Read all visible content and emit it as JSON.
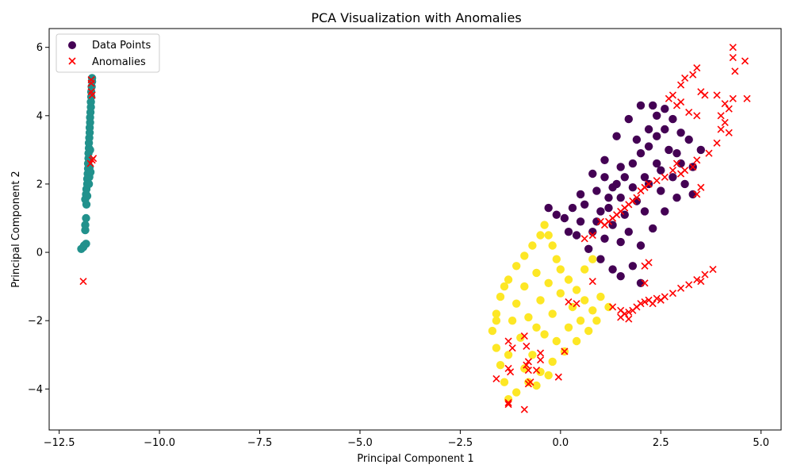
{
  "chart_data": {
    "type": "scatter",
    "title": "PCA Visualization with Anomalies",
    "xlabel": "Principal Component 1",
    "ylabel": "Principal Component 2",
    "xlim": [
      -12.75,
      5.5
    ],
    "ylim": [
      -5.2,
      6.55
    ],
    "x_ticks": [
      -12.5,
      -10.0,
      -7.5,
      -5.0,
      -2.5,
      0.0,
      2.5,
      5.0
    ],
    "x_tick_labels": [
      "−12.5",
      "−10.0",
      "−7.5",
      "−5.0",
      "−2.5",
      "0.0",
      "2.5",
      "5.0"
    ],
    "y_ticks": [
      -4,
      -2,
      0,
      2,
      4,
      6
    ],
    "y_tick_labels": [
      "−4",
      "−2",
      "0",
      "2",
      "4",
      "6"
    ],
    "grid": false,
    "legend": {
      "position": "top-left",
      "entries": [
        {
          "label": "Data Points",
          "marker": "circle",
          "color": "#440154"
        },
        {
          "label": "Anomalies",
          "marker": "x",
          "color": "#ff0000"
        }
      ]
    },
    "colors": {
      "cluster_a": "#440154",
      "cluster_b": "#21918c",
      "cluster_c": "#fde725",
      "anomaly": "#ff0000"
    },
    "series": [
      {
        "name": "cluster_a",
        "color": "#440154",
        "points": [
          [
            0.8,
            0.6
          ],
          [
            1.0,
            1.2
          ],
          [
            1.2,
            1.6
          ],
          [
            1.4,
            2.0
          ],
          [
            1.6,
            2.2
          ],
          [
            1.8,
            2.6
          ],
          [
            2.0,
            2.9
          ],
          [
            2.2,
            3.1
          ],
          [
            2.4,
            3.4
          ],
          [
            2.6,
            3.6
          ],
          [
            2.8,
            3.9
          ],
          [
            2.3,
            4.3
          ],
          [
            2.0,
            4.3
          ],
          [
            1.7,
            3.9
          ],
          [
            1.4,
            3.4
          ],
          [
            1.1,
            2.7
          ],
          [
            0.8,
            2.3
          ],
          [
            0.5,
            1.7
          ],
          [
            0.3,
            1.3
          ],
          [
            0.1,
            1.0
          ],
          [
            -0.1,
            1.1
          ],
          [
            -0.3,
            1.3
          ],
          [
            0.4,
            0.5
          ],
          [
            0.7,
            0.1
          ],
          [
            1.0,
            -0.2
          ],
          [
            1.3,
            -0.5
          ],
          [
            1.5,
            -0.7
          ],
          [
            1.8,
            -0.4
          ],
          [
            2.0,
            0.2
          ],
          [
            2.3,
            0.7
          ],
          [
            2.6,
            1.2
          ],
          [
            2.9,
            1.6
          ],
          [
            3.1,
            2.0
          ],
          [
            3.3,
            2.5
          ],
          [
            3.5,
            3.0
          ],
          [
            3.2,
            3.3
          ],
          [
            2.9,
            2.9
          ],
          [
            2.5,
            2.4
          ],
          [
            2.2,
            2.0
          ],
          [
            1.9,
            1.5
          ],
          [
            1.6,
            1.1
          ],
          [
            1.3,
            0.8
          ],
          [
            1.1,
            0.4
          ],
          [
            0.9,
            0.9
          ],
          [
            1.2,
            1.3
          ],
          [
            1.5,
            1.6
          ],
          [
            1.8,
            1.9
          ],
          [
            2.1,
            2.2
          ],
          [
            2.4,
            2.6
          ],
          [
            2.7,
            3.0
          ],
          [
            2.1,
            1.2
          ],
          [
            1.7,
            0.6
          ],
          [
            2.5,
            1.8
          ],
          [
            2.8,
            2.2
          ],
          [
            3.0,
            2.6
          ],
          [
            1.5,
            2.5
          ],
          [
            1.9,
            3.3
          ],
          [
            2.2,
            3.6
          ],
          [
            1.3,
            1.9
          ],
          [
            0.6,
            1.4
          ],
          [
            0.9,
            1.8
          ],
          [
            1.1,
            2.2
          ],
          [
            3.0,
            3.5
          ],
          [
            2.6,
            4.2
          ],
          [
            2.4,
            4.0
          ],
          [
            0.2,
            0.6
          ],
          [
            0.5,
            0.9
          ],
          [
            1.5,
            0.3
          ],
          [
            2.0,
            -0.9
          ],
          [
            3.3,
            1.7
          ]
        ]
      },
      {
        "name": "cluster_b",
        "color": "#21918c",
        "points": [
          [
            -11.95,
            0.1
          ],
          [
            -11.9,
            0.15
          ],
          [
            -11.88,
            0.2
          ],
          [
            -11.83,
            0.25
          ],
          [
            -11.85,
            0.65
          ],
          [
            -11.85,
            0.8
          ],
          [
            -11.83,
            1.0
          ],
          [
            -11.82,
            1.4
          ],
          [
            -11.85,
            1.55
          ],
          [
            -11.83,
            1.7
          ],
          [
            -11.82,
            1.85
          ],
          [
            -11.8,
            2.0
          ],
          [
            -11.8,
            2.15
          ],
          [
            -11.79,
            2.3
          ],
          [
            -11.78,
            2.45
          ],
          [
            -11.78,
            2.6
          ],
          [
            -11.77,
            2.75
          ],
          [
            -11.77,
            2.9
          ],
          [
            -11.76,
            3.05
          ],
          [
            -11.76,
            3.2
          ],
          [
            -11.75,
            3.35
          ],
          [
            -11.74,
            3.5
          ],
          [
            -11.74,
            3.65
          ],
          [
            -11.73,
            3.8
          ],
          [
            -11.73,
            3.95
          ],
          [
            -11.72,
            4.1
          ],
          [
            -11.71,
            4.25
          ],
          [
            -11.71,
            4.4
          ],
          [
            -11.7,
            4.55
          ],
          [
            -11.7,
            4.7
          ],
          [
            -11.69,
            4.85
          ],
          [
            -11.68,
            5.0
          ],
          [
            -11.68,
            5.1
          ],
          [
            -11.75,
            2.2
          ],
          [
            -11.72,
            2.35
          ],
          [
            -11.8,
            1.65
          ],
          [
            -11.76,
            2.0
          ],
          [
            -11.74,
            2.5
          ],
          [
            -11.73,
            3.0
          ]
        ]
      },
      {
        "name": "cluster_c",
        "color": "#fde725",
        "points": [
          [
            -0.4,
            0.8
          ],
          [
            -0.3,
            0.5
          ],
          [
            -0.2,
            0.2
          ],
          [
            -0.1,
            -0.2
          ],
          [
            0.0,
            -0.5
          ],
          [
            0.2,
            -0.8
          ],
          [
            0.4,
            -1.1
          ],
          [
            0.6,
            -1.4
          ],
          [
            0.8,
            -1.7
          ],
          [
            0.9,
            -2.0
          ],
          [
            0.7,
            -2.3
          ],
          [
            0.4,
            -2.6
          ],
          [
            0.1,
            -2.9
          ],
          [
            -0.2,
            -3.2
          ],
          [
            -0.5,
            -3.5
          ],
          [
            -0.8,
            -3.8
          ],
          [
            -1.1,
            -4.1
          ],
          [
            -1.3,
            -4.3
          ],
          [
            -1.4,
            -3.8
          ],
          [
            -1.5,
            -3.3
          ],
          [
            -1.6,
            -2.8
          ],
          [
            -1.7,
            -2.3
          ],
          [
            -1.6,
            -1.8
          ],
          [
            -1.5,
            -1.3
          ],
          [
            -1.3,
            -0.8
          ],
          [
            -1.1,
            -0.4
          ],
          [
            -0.9,
            -0.1
          ],
          [
            -0.7,
            0.2
          ],
          [
            -0.5,
            0.5
          ],
          [
            -0.6,
            -0.6
          ],
          [
            -0.9,
            -1.0
          ],
          [
            -1.1,
            -1.5
          ],
          [
            -1.2,
            -2.0
          ],
          [
            -1.0,
            -2.5
          ],
          [
            -0.7,
            -3.0
          ],
          [
            -0.4,
            -2.4
          ],
          [
            -0.2,
            -1.8
          ],
          [
            0.0,
            -1.2
          ],
          [
            0.3,
            -1.6
          ],
          [
            0.5,
            -2.0
          ],
          [
            -0.3,
            -0.9
          ],
          [
            -0.5,
            -1.4
          ],
          [
            -0.8,
            -1.9
          ],
          [
            -0.6,
            -2.2
          ],
          [
            -1.3,
            -3.0
          ],
          [
            -0.9,
            -3.4
          ],
          [
            -0.6,
            -3.9
          ],
          [
            -0.3,
            -3.6
          ],
          [
            0.6,
            -0.5
          ],
          [
            0.8,
            -0.2
          ],
          [
            1.0,
            -1.3
          ],
          [
            1.2,
            -1.6
          ],
          [
            -1.4,
            -1.0
          ],
          [
            -1.6,
            -2.0
          ],
          [
            -0.1,
            -2.6
          ],
          [
            0.2,
            -2.2
          ]
        ]
      }
    ],
    "anomalies": [
      [
        -11.9,
        -0.85
      ],
      [
        -11.7,
        5.05
      ],
      [
        -11.7,
        4.95
      ],
      [
        -11.7,
        4.7
      ],
      [
        -11.68,
        4.6
      ],
      [
        -11.72,
        2.6
      ],
      [
        -11.68,
        2.7
      ],
      [
        -11.65,
        2.75
      ],
      [
        4.3,
        6.0
      ],
      [
        4.6,
        5.6
      ],
      [
        4.3,
        5.7
      ],
      [
        4.35,
        5.3
      ],
      [
        3.4,
        5.4
      ],
      [
        3.3,
        5.2
      ],
      [
        3.1,
        5.1
      ],
      [
        3.0,
        4.9
      ],
      [
        4.65,
        4.5
      ],
      [
        4.3,
        4.5
      ],
      [
        3.9,
        4.6
      ],
      [
        4.1,
        4.35
      ],
      [
        4.2,
        4.2
      ],
      [
        2.8,
        4.6
      ],
      [
        2.7,
        4.5
      ],
      [
        2.9,
        4.3
      ],
      [
        3.6,
        4.6
      ],
      [
        3.5,
        4.7
      ],
      [
        3.0,
        4.4
      ],
      [
        3.2,
        4.1
      ],
      [
        3.4,
        4.0
      ],
      [
        4.0,
        4.0
      ],
      [
        4.1,
        3.8
      ],
      [
        4.0,
        3.6
      ],
      [
        4.2,
        3.5
      ],
      [
        3.9,
        3.2
      ],
      [
        3.7,
        2.9
      ],
      [
        3.4,
        2.7
      ],
      [
        3.3,
        2.5
      ],
      [
        3.1,
        2.4
      ],
      [
        3.0,
        2.3
      ],
      [
        2.9,
        2.6
      ],
      [
        2.8,
        2.4
      ],
      [
        3.5,
        1.9
      ],
      [
        3.4,
        1.7
      ],
      [
        2.6,
        2.2
      ],
      [
        2.4,
        2.1
      ],
      [
        2.2,
        2.0
      ],
      [
        2.1,
        1.9
      ],
      [
        2.0,
        1.8
      ],
      [
        1.9,
        1.6
      ],
      [
        1.8,
        1.5
      ],
      [
        1.7,
        1.4
      ],
      [
        1.6,
        1.3
      ],
      [
        1.5,
        1.2
      ],
      [
        1.4,
        1.1
      ],
      [
        1.3,
        1.0
      ],
      [
        1.2,
        0.9
      ],
      [
        1.1,
        0.8
      ],
      [
        1.0,
        0.9
      ],
      [
        0.8,
        0.5
      ],
      [
        0.6,
        0.4
      ],
      [
        0.8,
        -0.85
      ],
      [
        0.2,
        -1.45
      ],
      [
        0.4,
        -1.5
      ],
      [
        1.3,
        -1.6
      ],
      [
        1.5,
        -1.7
      ],
      [
        1.6,
        -1.8
      ],
      [
        1.7,
        -1.75
      ],
      [
        1.8,
        -1.7
      ],
      [
        1.9,
        -1.6
      ],
      [
        2.0,
        -1.5
      ],
      [
        2.1,
        -1.45
      ],
      [
        2.2,
        -1.4
      ],
      [
        2.4,
        -1.35
      ],
      [
        2.6,
        -1.3
      ],
      [
        2.8,
        -1.2
      ],
      [
        3.0,
        -1.05
      ],
      [
        3.2,
        -0.95
      ],
      [
        3.4,
        -0.8
      ],
      [
        3.5,
        -0.85
      ],
      [
        3.6,
        -0.65
      ],
      [
        3.8,
        -0.5
      ],
      [
        2.1,
        -0.9
      ],
      [
        2.2,
        -0.3
      ],
      [
        2.1,
        -0.4
      ],
      [
        1.5,
        -1.9
      ],
      [
        1.7,
        -1.95
      ],
      [
        2.5,
        -1.4
      ],
      [
        2.3,
        -1.5
      ],
      [
        -1.3,
        -2.6
      ],
      [
        -1.2,
        -2.8
      ],
      [
        -1.3,
        -3.4
      ],
      [
        -1.25,
        -3.5
      ],
      [
        -0.9,
        -2.45
      ],
      [
        -0.85,
        -2.75
      ],
      [
        -0.8,
        -3.2
      ],
      [
        -0.85,
        -3.3
      ],
      [
        -0.8,
        -3.45
      ],
      [
        -0.75,
        -3.8
      ],
      [
        -0.8,
        -3.85
      ],
      [
        -0.6,
        -3.45
      ],
      [
        -0.5,
        -2.95
      ],
      [
        -0.5,
        -3.15
      ],
      [
        0.1,
        -2.9
      ],
      [
        -0.05,
        -3.65
      ],
      [
        -1.6,
        -3.7
      ],
      [
        -1.3,
        -4.4
      ],
      [
        -1.3,
        -4.45
      ],
      [
        -0.9,
        -4.6
      ]
    ]
  }
}
